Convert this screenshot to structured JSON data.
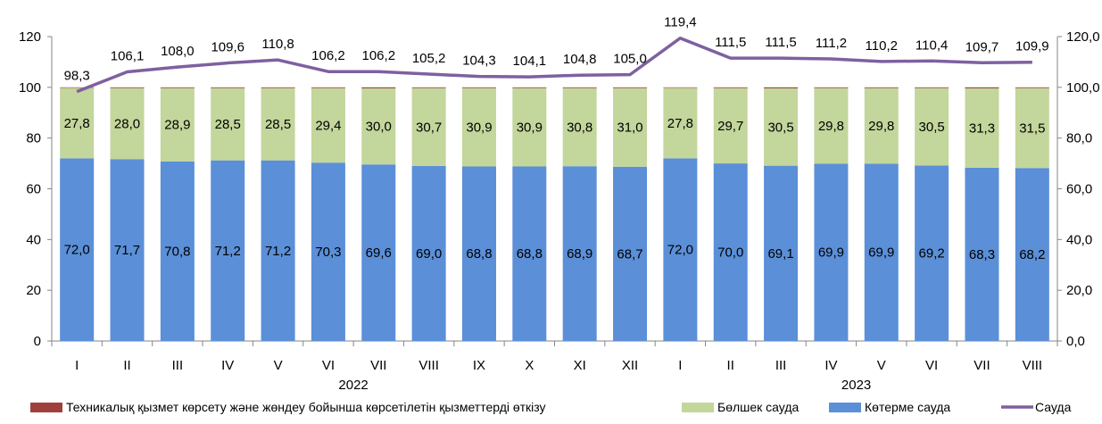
{
  "chart_data": {
    "type": "bar",
    "stacked": true,
    "categories": [
      "I",
      "II",
      "III",
      "IV",
      "V",
      "VI",
      "VII",
      "VIII",
      "IX",
      "X",
      "XI",
      "XII",
      "I",
      "II",
      "III",
      "IV",
      "V",
      "VI",
      "VII",
      "VIII"
    ],
    "year_groups": [
      {
        "label": "2022",
        "from": 0,
        "to": 11
      },
      {
        "label": "2023",
        "from": 12,
        "to": 19
      }
    ],
    "series": [
      {
        "name": "Көтерме сауда",
        "kind": "bar",
        "color": "#5B8FD8",
        "values": [
          72.0,
          71.7,
          70.8,
          71.2,
          71.2,
          70.3,
          69.6,
          69.0,
          68.8,
          68.8,
          68.9,
          68.7,
          72.0,
          70.0,
          69.1,
          69.9,
          69.9,
          69.2,
          68.3,
          68.2
        ],
        "labels": [
          "72,0",
          "71,7",
          "70,8",
          "71,2",
          "71,2",
          "70,3",
          "69,6",
          "69,0",
          "68,8",
          "68,8",
          "68,9",
          "68,7",
          "72,0",
          "70,0",
          "69,1",
          "69,9",
          "69,9",
          "69,2",
          "68,3",
          "68,2"
        ]
      },
      {
        "name": "Бөлшек сауда",
        "kind": "bar",
        "color": "#C3D69B",
        "values": [
          27.8,
          28.0,
          28.9,
          28.5,
          28.5,
          29.4,
          30.0,
          30.7,
          30.9,
          30.9,
          30.8,
          31.0,
          27.8,
          29.7,
          30.5,
          29.8,
          29.8,
          30.5,
          31.3,
          31.5
        ],
        "labels": [
          "27,8",
          "28,0",
          "28,9",
          "28,5",
          "28,5",
          "29,4",
          "30,0",
          "30,7",
          "30,9",
          "30,9",
          "30,8",
          "31,0",
          "27,8",
          "29,7",
          "30,5",
          "29,8",
          "29,8",
          "30,5",
          "31,3",
          "31,5"
        ]
      },
      {
        "name": "Техникалық қызмет көрсету және жөндеу бойынша көрсетілетін қызметтерді өткізу",
        "kind": "bar",
        "color": "#A0403D",
        "values": [
          0.2,
          0.3,
          0.3,
          0.3,
          0.3,
          0.3,
          0.4,
          0.3,
          0.3,
          0.3,
          0.3,
          0.3,
          0.2,
          0.3,
          0.4,
          0.3,
          0.3,
          0.3,
          0.4,
          0.3
        ]
      },
      {
        "name": "Сауда",
        "kind": "line",
        "axis": "right",
        "color": "#7E60A0",
        "values": [
          98.3,
          106.1,
          108.0,
          109.6,
          110.8,
          106.2,
          106.2,
          105.2,
          104.3,
          104.1,
          104.8,
          105.0,
          119.4,
          111.5,
          111.5,
          111.2,
          110.2,
          110.4,
          109.7,
          109.9
        ],
        "labels": [
          "98,3",
          "106,1",
          "108,0",
          "109,6",
          "110,8",
          "106,2",
          "106,2",
          "105,2",
          "104,3",
          "104,1",
          "104,8",
          "105,0",
          "119,4",
          "111,5",
          "111,5",
          "111,2",
          "110,2",
          "110,4",
          "109,7",
          "109,9"
        ]
      }
    ],
    "left_axis": {
      "ylim": [
        0,
        120
      ],
      "ticks": [
        "0",
        "20",
        "40",
        "60",
        "80",
        "100",
        "120"
      ]
    },
    "right_axis": {
      "ylim": [
        0,
        120
      ],
      "ticks": [
        "0,0",
        "20,0",
        "40,0",
        "60,0",
        "80,0",
        "100,0",
        "120,0"
      ]
    },
    "legend_position": "bottom",
    "legend_order": [
      2,
      1,
      0,
      3
    ],
    "grid": false
  }
}
